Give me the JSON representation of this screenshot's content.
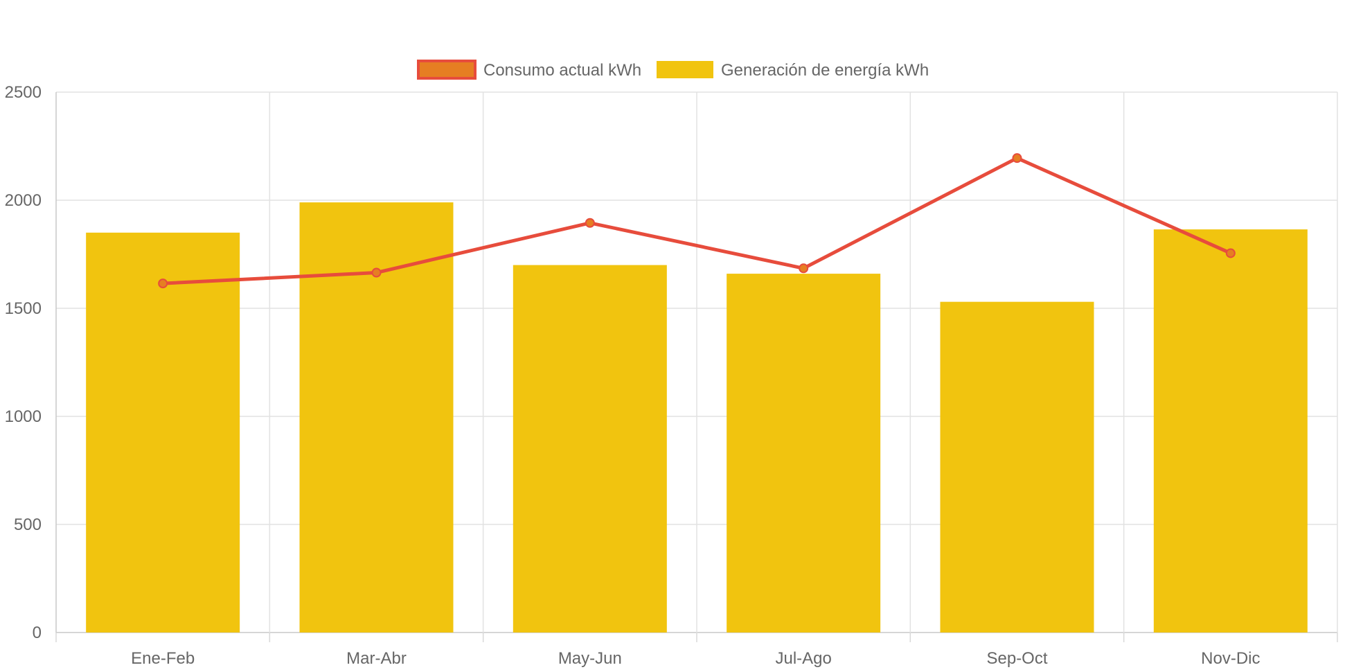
{
  "chart_data": {
    "type": "bar",
    "categories": [
      "Ene-Feb",
      "Mar-Abr",
      "May-Jun",
      "Jul-Ago",
      "Sep-Oct",
      "Nov-Dic"
    ],
    "series": [
      {
        "name": "Consumo actual kWh",
        "type": "line",
        "color": "#e74c3c",
        "point_fill": "#e67e22",
        "values": [
          1615,
          1665,
          1895,
          1685,
          2195,
          1755
        ]
      },
      {
        "name": "Generación de energía kWh",
        "type": "bar",
        "color": "#f1c40f",
        "values": [
          1850,
          1990,
          1700,
          1660,
          1530,
          1865
        ]
      }
    ],
    "ylim": [
      0,
      2500
    ],
    "yticks": [
      0,
      500,
      1000,
      1500,
      2000,
      2500
    ],
    "grid": true,
    "legend_position": "top-center"
  }
}
